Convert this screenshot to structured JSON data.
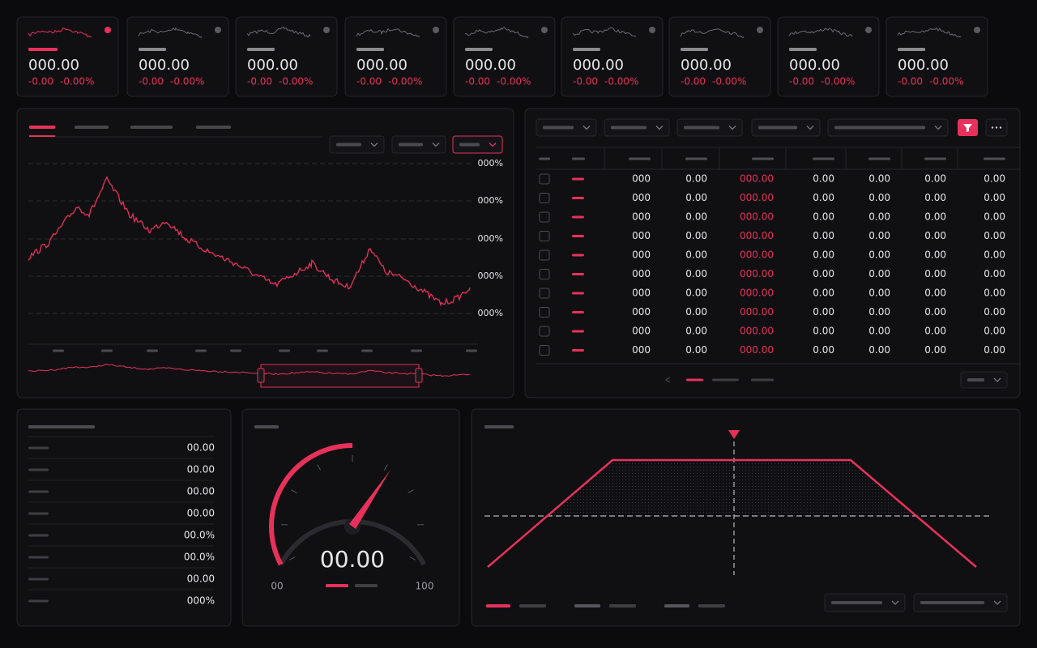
{
  "tickers": [
    {
      "price": "000.00",
      "change": "-0.00",
      "change_percent": "-0.00%"
    },
    {
      "price": "000.00",
      "change": "-0.00",
      "change_percent": "-0.00%"
    },
    {
      "price": "000.00",
      "change": "-0.00",
      "change_percent": "-0.00%"
    },
    {
      "price": "000.00",
      "change": "-0.00",
      "change_percent": "-0.00%"
    },
    {
      "price": "000.00",
      "change": "-0.00",
      "change_percent": "-0.00%"
    },
    {
      "price": "000.00",
      "change": "-0.00",
      "change_percent": "-0.00%"
    },
    {
      "price": "000.00",
      "change": "-0.00",
      "change_percent": "-0.00%"
    },
    {
      "price": "000.00",
      "change": "-0.00",
      "change_percent": "-0.00%"
    },
    {
      "price": "000.00",
      "change": "-0.00",
      "change_percent": "-0.00%"
    }
  ],
  "price_chart": {
    "y_axis_labels": [
      "000%",
      "000%",
      "000%",
      "000%",
      "000%"
    ]
  },
  "table": {
    "rows": [
      [
        "000",
        "0.00",
        "000.00",
        "0.00",
        "0.00",
        "0.00",
        "0.00"
      ],
      [
        "000",
        "0.00",
        "000.00",
        "0.00",
        "0.00",
        "0.00",
        "0.00"
      ],
      [
        "000",
        "0.00",
        "000.00",
        "0.00",
        "0.00",
        "0.00",
        "0.00"
      ],
      [
        "000",
        "0.00",
        "000.00",
        "0.00",
        "0.00",
        "0.00",
        "0.00"
      ],
      [
        "000",
        "0.00",
        "000.00",
        "0.00",
        "0.00",
        "0.00",
        "0.00"
      ],
      [
        "000",
        "0.00",
        "000.00",
        "0.00",
        "0.00",
        "0.00",
        "0.00"
      ],
      [
        "000",
        "0.00",
        "000.00",
        "0.00",
        "0.00",
        "0.00",
        "0.00"
      ],
      [
        "000",
        "0.00",
        "000.00",
        "0.00",
        "0.00",
        "0.00",
        "0.00"
      ],
      [
        "000",
        "0.00",
        "000.00",
        "0.00",
        "0.00",
        "0.00",
        "0.00"
      ],
      [
        "000",
        "0.00",
        "000.00",
        "0.00",
        "0.00",
        "0.00",
        "0.00"
      ]
    ]
  },
  "stats_list": {
    "values": [
      "00.00",
      "00.00",
      "00.00",
      "00.00",
      "00.0%",
      "00.0%",
      "00.00",
      "000%"
    ]
  },
  "gauge": {
    "value": "00.00",
    "min_label": "00",
    "max_label": "100"
  }
}
